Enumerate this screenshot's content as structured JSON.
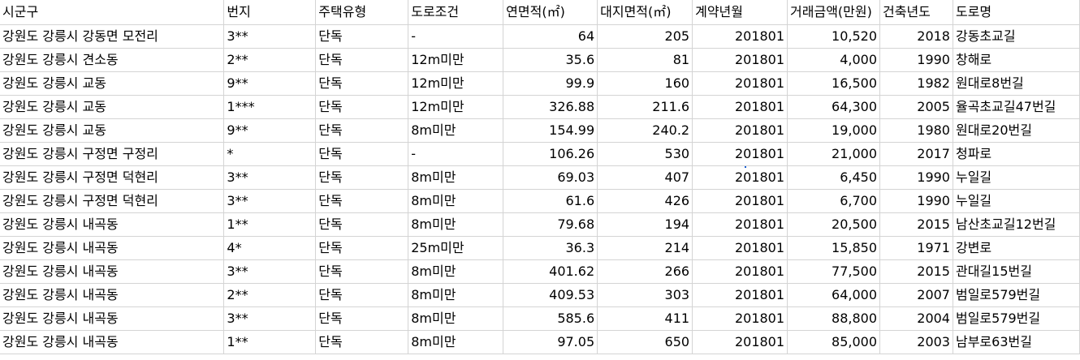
{
  "sheet": {
    "columns": [
      "시군구",
      "번지",
      "주택유형",
      "도로조건",
      "연면적(㎡)",
      "대지면적(㎡)",
      "계약년월",
      "거래금액(만원)",
      "건축년도",
      "도로명"
    ],
    "rows": [
      [
        "강원도 강릉시 강동면 모전리",
        "3**",
        "단독",
        "-",
        "64",
        "205",
        "201801",
        "10,520",
        "2018",
        "강동초교길"
      ],
      [
        "강원도 강릉시 견소동",
        "2**",
        "단독",
        "12m미만",
        "35.6",
        "81",
        "201801",
        "4,000",
        "1990",
        "창해로"
      ],
      [
        "강원도 강릉시 교동",
        "9**",
        "단독",
        "12m미만",
        "99.9",
        "160",
        "201801",
        "16,500",
        "1982",
        "원대로8번길"
      ],
      [
        "강원도 강릉시 교동",
        "1***",
        "단독",
        "12m미만",
        "326.88",
        "211.6",
        "201801",
        "64,300",
        "2005",
        "율곡초교길47번길"
      ],
      [
        "강원도 강릉시 교동",
        "9**",
        "단독",
        "8m미만",
        "154.99",
        "240.2",
        "201801",
        "19,000",
        "1980",
        "원대로20번길"
      ],
      [
        "강원도 강릉시 구정면 구정리",
        "*",
        "단독",
        "-",
        "106.26",
        "530",
        "201801",
        "21,000",
        "2017",
        "청파로"
      ],
      [
        "강원도 강릉시 구정면 덕현리",
        "3**",
        "단독",
        "8m미만",
        "69.03",
        "407",
        "201801",
        "6,450",
        "1990",
        "누일길"
      ],
      [
        "강원도 강릉시 구정면 덕현리",
        "3**",
        "단독",
        "8m미만",
        "61.6",
        "426",
        "201801",
        "6,700",
        "1990",
        "누일길"
      ],
      [
        "강원도 강릉시 내곡동",
        "1**",
        "단독",
        "8m미만",
        "79.68",
        "194",
        "201801",
        "20,500",
        "2015",
        "남산초교길12번길"
      ],
      [
        "강원도 강릉시 내곡동",
        "4*",
        "단독",
        "25m미만",
        "36.3",
        "214",
        "201801",
        "15,850",
        "1971",
        "강변로"
      ],
      [
        "강원도 강릉시 내곡동",
        "3**",
        "단독",
        "8m미만",
        "401.62",
        "266",
        "201801",
        "77,500",
        "2015",
        "관대길15번길"
      ],
      [
        "강원도 강릉시 내곡동",
        "2**",
        "단독",
        "8m미만",
        "409.53",
        "303",
        "201801",
        "64,000",
        "2007",
        "범일로579번길"
      ],
      [
        "강원도 강릉시 내곡동",
        "3**",
        "단독",
        "8m미만",
        "585.6",
        "411",
        "201801",
        "88,800",
        "2004",
        "범일로579번길"
      ],
      [
        "강원도 강릉시 내곡동",
        "1**",
        "단독",
        "8m미만",
        "97.05",
        "650",
        "201801",
        "85,000",
        "2003",
        "남부로63번길"
      ]
    ]
  }
}
